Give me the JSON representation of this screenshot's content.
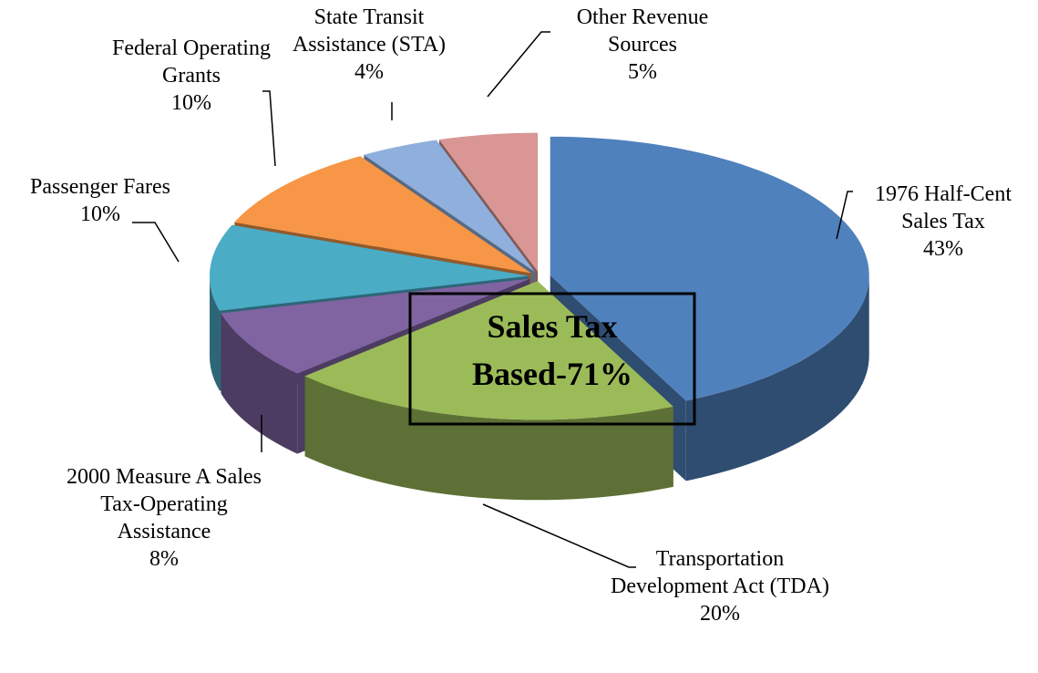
{
  "chart_data": {
    "type": "pie",
    "categories": [
      "1976 Half-Cent Sales Tax",
      "Transportation Development Act (TDA)",
      "2000 Measure A Sales Tax-Operating Assistance",
      "Passenger Fares",
      "Federal Operating Grants",
      "State Transit Assistance (STA)",
      "Other Revenue Sources"
    ],
    "values": [
      43,
      20,
      8,
      10,
      10,
      4,
      5
    ],
    "value_labels": [
      "43%",
      "20%",
      "8%",
      "10%",
      "10%",
      "4%",
      "5%"
    ],
    "colors": [
      "#4f81bd",
      "#9bbb59",
      "#8064a2",
      "#4bacc6",
      "#f79646",
      "#8fb0dc",
      "#d99694"
    ],
    "annotation": "Sales Tax Based-71%"
  }
}
